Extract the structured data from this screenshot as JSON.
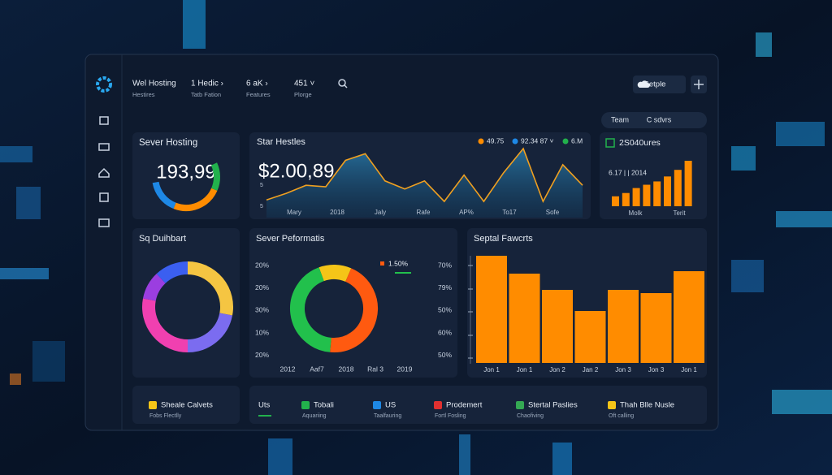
{
  "topbar": {
    "items": [
      {
        "label": "Wel Hosting",
        "sub": "Hestires"
      },
      {
        "label": "1 Hedic ›",
        "sub": "Tatb Fation"
      },
      {
        "label": "6 aK ›",
        "sub": "Features"
      },
      {
        "label": "451 ˅",
        "sub": "Plorge"
      }
    ],
    "button": "Setple"
  },
  "tabs": [
    "Team",
    "C sdvrs"
  ],
  "hosting": {
    "title": "Sever Hosting",
    "value": "193,99",
    "segments": [
      {
        "color": "#1e88e5",
        "value": 30
      },
      {
        "color": "#ff8c00",
        "value": 45
      },
      {
        "color": "#22b14c",
        "value": 25
      }
    ]
  },
  "revenue": {
    "title": "Star Hestles",
    "value": "$2.00,89",
    "legend": [
      {
        "label": "49.75",
        "color": "#ff8c00"
      },
      {
        "label": "92.34 87 ˅",
        "color": "#1e88e5"
      },
      {
        "label": "6.M",
        "color": "#22b14c"
      }
    ],
    "categories": [
      "Mary",
      "2018",
      "Jaly",
      "Rafe",
      "AP%",
      "To17",
      "Sofe"
    ],
    "yticks": [
      "5",
      "5"
    ],
    "values": [
      24,
      33,
      44,
      42,
      78,
      87,
      50,
      39,
      50,
      22,
      58,
      22,
      61,
      94,
      22,
      72,
      44
    ],
    "color": "#f0a020"
  },
  "growth": {
    "title": "2S040ures",
    "note": "6.17 | | 2014",
    "categories": [
      "Molk",
      "Terit"
    ],
    "values": [
      12,
      16,
      22,
      26,
      30,
      36,
      44,
      55
    ],
    "color": "#ff8c00"
  },
  "distribution": {
    "title": "Sq Duihbart",
    "segments": [
      {
        "color": "#f5c542",
        "value": 28
      },
      {
        "color": "#7b6cf0",
        "value": 22
      },
      {
        "color": "#f040b0",
        "value": 28
      },
      {
        "color": "#9b3ee0",
        "value": 10
      },
      {
        "color": "#3b5ff0",
        "value": 12
      }
    ]
  },
  "performance": {
    "title": "Sever Peformatis",
    "left_labels": [
      "20%",
      "20%",
      "30%",
      "10%",
      "20%"
    ],
    "right_labels": [
      "70%",
      "79%",
      "50%",
      "60%",
      "50%"
    ],
    "categories": [
      "2012",
      "Aaf7",
      "2018",
      "Ral 3",
      "2019"
    ],
    "legend": "1.50%",
    "segments": [
      {
        "color": "#f5c518",
        "value": 12
      },
      {
        "color": "#ff5a10",
        "value": 45
      },
      {
        "color": "#22c04c",
        "value": 43
      }
    ]
  },
  "reports": {
    "title": "Septal Fawcrts",
    "categories": [
      "Jon 1",
      "Jon 1",
      "Jon 2",
      "Jan 2",
      "Jon 3",
      "Jon 3",
      "Jon 1"
    ],
    "values": [
      132,
      110,
      90,
      64,
      90,
      86,
      113
    ],
    "color": "#ff8c00"
  },
  "footer": [
    {
      "icon": "#f5c518",
      "label": "Sheale Calvets",
      "sub": "Fobs Flectlly"
    },
    {
      "label": "Uts"
    },
    {
      "icon": "#22b14c",
      "label": "Tobali",
      "sub": "Aquariing"
    },
    {
      "icon": "#1e88e5",
      "label": "US",
      "sub": "Taalfauring"
    },
    {
      "icon": "#e03030",
      "label": "Prodemert",
      "sub": "Fortl Fosling"
    },
    {
      "icon": "#34a853",
      "label": "Stertal Paslies",
      "sub": "Chaofiving"
    },
    {
      "icon": "#f5c518",
      "label": "Thah Blle Nusle",
      "sub": "Oft calling"
    }
  ]
}
